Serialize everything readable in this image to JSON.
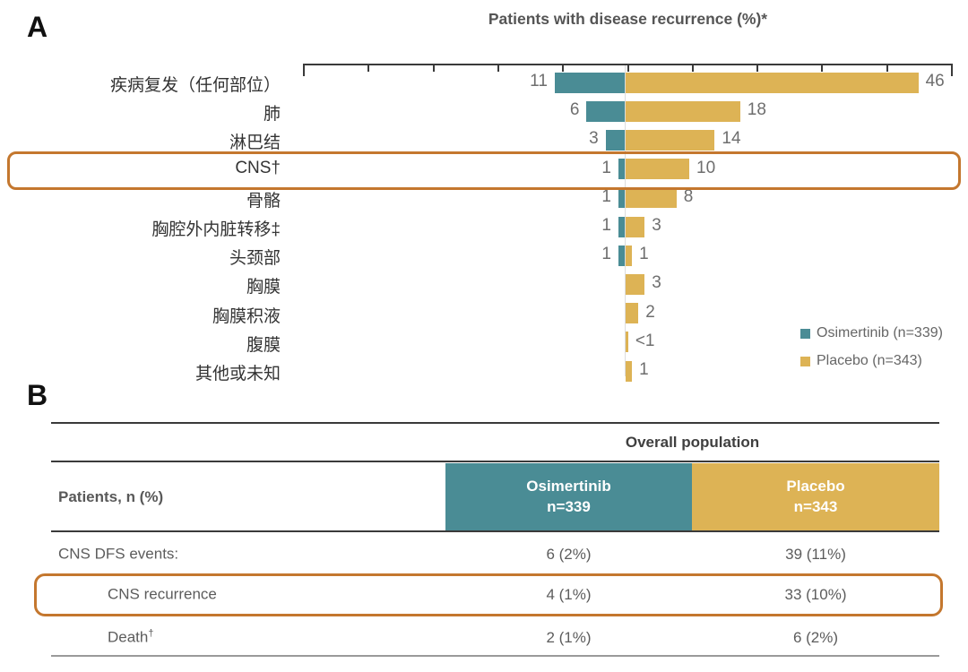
{
  "panel_a": {
    "label": "A",
    "title": "Patients with disease recurrence (%)*",
    "legend": [
      {
        "label": "Osimertinib (n=339)",
        "color": "#4a8c95"
      },
      {
        "label": "Placebo (n=343)",
        "color": "#ddb355"
      }
    ],
    "chart_data": {
      "type": "bar",
      "orientation": "diverging-horizontal",
      "title": "Patients with disease recurrence (%)*",
      "categories": [
        "疾病复发（任何部位）",
        "肺",
        "淋巴结",
        "CNS†",
        "骨骼",
        "胸腔外内脏转移‡",
        "头颈部",
        "胸膜",
        "胸膜积液",
        "腹膜",
        "其他或未知"
      ],
      "series": [
        {
          "name": "Osimertinib (n=339)",
          "color": "#4a8c95",
          "side": "left",
          "values": [
            11,
            6,
            3,
            1,
            1,
            1,
            1,
            0,
            0,
            0,
            0
          ],
          "value_labels": [
            "11",
            "6",
            "3",
            "1",
            "1",
            "1",
            "1",
            "",
            "",
            "",
            ""
          ]
        },
        {
          "name": "Placebo (n=343)",
          "color": "#ddb355",
          "side": "right",
          "values": [
            46,
            18,
            14,
            10,
            8,
            3,
            1,
            3,
            2,
            0.4,
            1
          ],
          "value_labels": [
            "46",
            "18",
            "14",
            "10",
            "8",
            "3",
            "1",
            "3",
            "2",
            "<1",
            "1"
          ]
        }
      ],
      "xlim": [
        -50,
        50
      ],
      "tick_interval": 10,
      "grid": false,
      "legend_position": "bottom-right",
      "highlighted_category": "CNS†"
    }
  },
  "panel_b": {
    "label": "B",
    "table": {
      "group_header": "Overall population",
      "row_header": "Patients, n (%)",
      "columns": [
        {
          "title": "Osimertinib",
          "subtitle": "n=339",
          "color": "#4a8c95"
        },
        {
          "title": "Placebo",
          "subtitle": "n=343",
          "color": "#ddb355"
        }
      ],
      "rows": [
        {
          "label": "CNS DFS events:",
          "sup": "",
          "osimertinib": "6 (2%)",
          "placebo": "39 (11%)",
          "highlighted": false
        },
        {
          "label": "CNS recurrence",
          "sup": "",
          "osimertinib": "4 (1%)",
          "placebo": "33 (10%)",
          "highlighted": true
        },
        {
          "label": "Death",
          "sup": "†",
          "osimertinib": "2 (1%)",
          "placebo": "6 (2%)",
          "highlighted": false
        }
      ]
    }
  },
  "colors": {
    "osimertinib_teal": "#4a8c95",
    "placebo_gold": "#ddb355",
    "highlight_orange": "#c4772e",
    "axis_dark": "#3a3a3a",
    "value_gray": "#6e6e6e"
  }
}
